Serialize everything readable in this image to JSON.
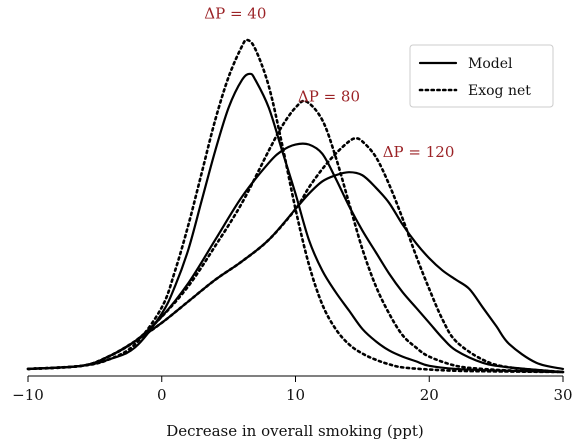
{
  "chart_data": {
    "type": "line",
    "xlabel": "Decrease in overall smoking (ppt)",
    "ylabel": "",
    "title": "",
    "xlim": [
      -10,
      30
    ],
    "ylim": [
      0,
      1.08
    ],
    "xticks": [
      -10,
      0,
      10,
      20,
      30
    ],
    "xtick_labels": [
      "−10",
      "0",
      "10",
      "20",
      "30"
    ],
    "y_axis_visible": false,
    "grid": false,
    "legend": {
      "placement": "top-right",
      "entries": [
        {
          "label": "Model",
          "style": "solid"
        },
        {
          "label": "Exog net",
          "style": "dotted"
        }
      ]
    },
    "annotations": [
      {
        "text": "ΔP = 40",
        "x": 5.5,
        "y": 1.15,
        "color": "#9b2226"
      },
      {
        "text": "ΔP = 80",
        "x": 12.5,
        "y": 0.88,
        "color": "#9b2226"
      },
      {
        "text": "ΔP = 120",
        "x": 19.2,
        "y": 0.7,
        "color": "#9b2226"
      }
    ],
    "series": [
      {
        "group": "ΔP = 40",
        "style": "solid",
        "x": [
          -10,
          -6,
          -4,
          -2,
          0,
          1,
          2,
          3,
          4,
          5,
          6,
          6.6,
          7,
          8,
          9,
          10,
          11,
          12,
          13,
          14,
          15,
          16,
          17,
          18,
          19,
          20,
          22,
          25,
          30
        ],
        "y": [
          0.01,
          0.02,
          0.04,
          0.08,
          0.19,
          0.28,
          0.4,
          0.56,
          0.72,
          0.86,
          0.95,
          0.97,
          0.95,
          0.86,
          0.72,
          0.58,
          0.43,
          0.33,
          0.26,
          0.2,
          0.14,
          0.1,
          0.07,
          0.05,
          0.035,
          0.02,
          0.01,
          0.005,
          0.0
        ]
      },
      {
        "group": "ΔP = 40",
        "style": "dotted",
        "x": [
          -10,
          -6,
          -4,
          -2,
          0,
          1,
          2,
          3,
          4,
          5,
          6,
          6.4,
          7,
          8,
          9,
          10,
          11,
          12,
          13,
          14,
          15,
          16,
          17,
          18,
          20,
          22,
          25,
          30
        ],
        "y": [
          0.01,
          0.02,
          0.04,
          0.09,
          0.21,
          0.33,
          0.48,
          0.65,
          0.82,
          0.96,
          1.06,
          1.08,
          1.05,
          0.93,
          0.74,
          0.53,
          0.35,
          0.22,
          0.14,
          0.09,
          0.06,
          0.04,
          0.025,
          0.015,
          0.008,
          0.004,
          0.002,
          0.0
        ]
      },
      {
        "group": "ΔP = 80",
        "style": "solid",
        "x": [
          -10,
          -6,
          -4,
          -2,
          0,
          2,
          4,
          6,
          8,
          9,
          10,
          11,
          12,
          13,
          14,
          15,
          16,
          17,
          18,
          19,
          20,
          21,
          22,
          24,
          26,
          30
        ],
        "y": [
          0.01,
          0.02,
          0.05,
          0.1,
          0.18,
          0.29,
          0.43,
          0.57,
          0.68,
          0.72,
          0.74,
          0.74,
          0.71,
          0.63,
          0.54,
          0.46,
          0.39,
          0.32,
          0.26,
          0.21,
          0.16,
          0.11,
          0.07,
          0.03,
          0.015,
          0.0
        ]
      },
      {
        "group": "ΔP = 80",
        "style": "dotted",
        "x": [
          -10,
          -6,
          -4,
          -2,
          0,
          2,
          4,
          6,
          8,
          9,
          10,
          10.8,
          12,
          13,
          14,
          15,
          16,
          17,
          18,
          19,
          20,
          22,
          24,
          26,
          30
        ],
        "y": [
          0.01,
          0.02,
          0.05,
          0.1,
          0.18,
          0.28,
          0.41,
          0.55,
          0.72,
          0.8,
          0.86,
          0.88,
          0.82,
          0.7,
          0.55,
          0.4,
          0.28,
          0.19,
          0.12,
          0.08,
          0.05,
          0.02,
          0.01,
          0.005,
          0.0
        ]
      },
      {
        "group": "ΔP = 120",
        "style": "solid",
        "x": [
          -10,
          -6,
          -4,
          -2,
          0,
          2,
          4,
          6,
          8,
          10,
          11,
          12,
          13,
          14,
          15,
          16,
          17,
          18,
          19,
          20,
          21,
          22,
          23,
          24,
          25,
          26,
          28,
          30
        ],
        "y": [
          0.01,
          0.02,
          0.05,
          0.1,
          0.16,
          0.23,
          0.3,
          0.36,
          0.43,
          0.53,
          0.58,
          0.62,
          0.64,
          0.65,
          0.64,
          0.6,
          0.55,
          0.48,
          0.42,
          0.37,
          0.33,
          0.3,
          0.27,
          0.21,
          0.15,
          0.09,
          0.03,
          0.01
        ]
      },
      {
        "group": "ΔP = 120",
        "style": "dotted",
        "x": [
          -10,
          -6,
          -4,
          -2,
          0,
          2,
          4,
          6,
          8,
          10,
          11,
          12,
          13,
          14,
          14.5,
          15,
          16,
          17,
          18,
          19,
          20,
          21,
          22,
          24,
          26,
          30
        ],
        "y": [
          0.01,
          0.02,
          0.05,
          0.1,
          0.16,
          0.23,
          0.3,
          0.36,
          0.43,
          0.53,
          0.6,
          0.66,
          0.71,
          0.75,
          0.76,
          0.75,
          0.7,
          0.61,
          0.5,
          0.38,
          0.27,
          0.17,
          0.1,
          0.04,
          0.015,
          0.0
        ]
      }
    ]
  }
}
